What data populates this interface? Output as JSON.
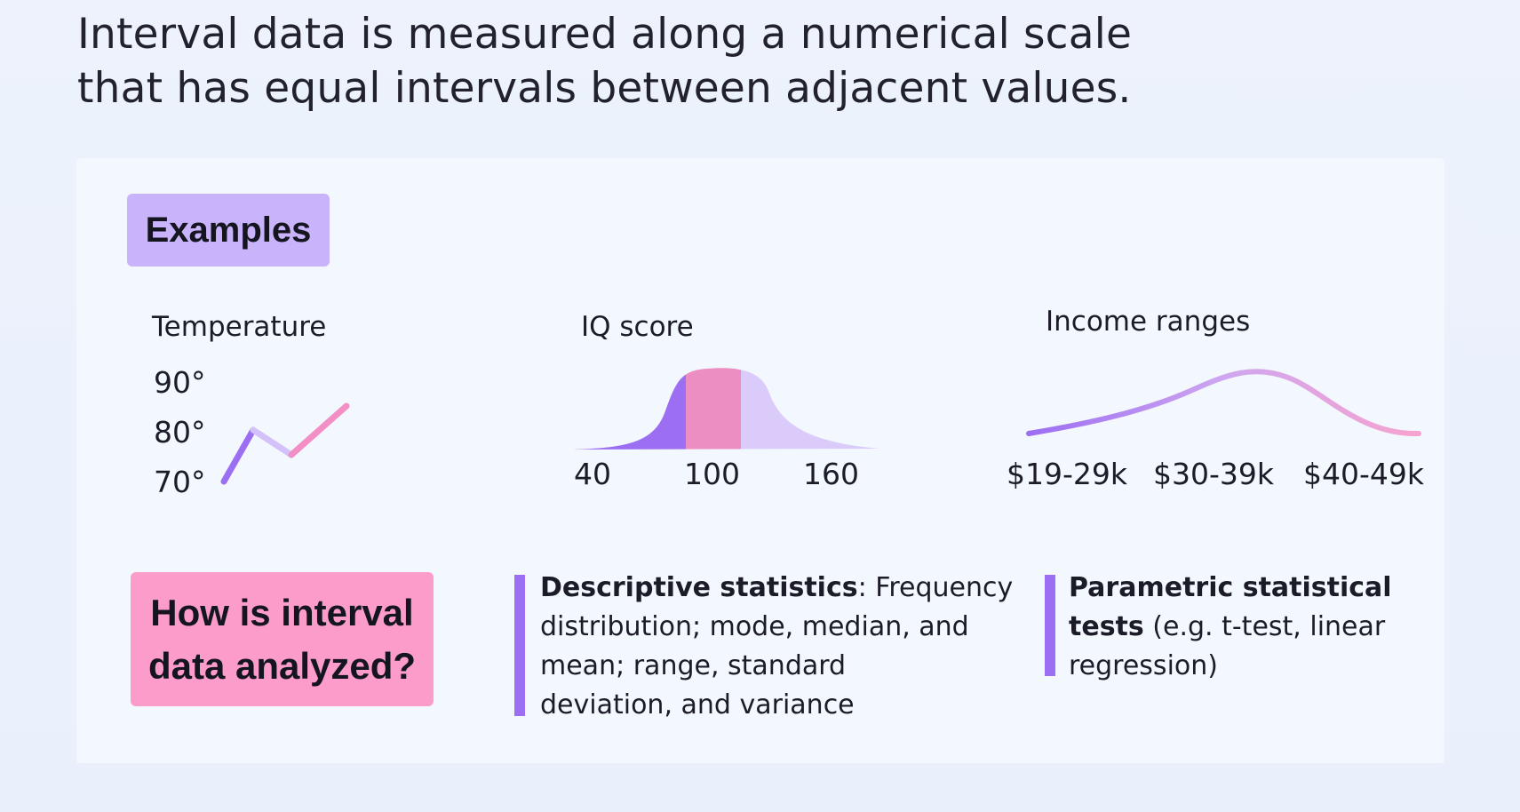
{
  "headline": {
    "line1": "Interval data is measured along a numerical scale",
    "line2": "that has equal intervals between adjacent values."
  },
  "examples_badge": "Examples",
  "temperature": {
    "label": "Temperature",
    "ticks": [
      "90°",
      "80°",
      "70°"
    ]
  },
  "iq": {
    "label": "IQ score",
    "ticks": [
      "40",
      "100",
      "160"
    ]
  },
  "income": {
    "label": "Income ranges",
    "ticks": [
      "$19-29k",
      "$30-39k",
      "$40-49k"
    ]
  },
  "question": {
    "line1": "How is interval",
    "line2": "data analyzed?"
  },
  "descriptive": {
    "bold": "Descriptive statistics",
    "line1_rest": ": Frequency",
    "line2": "distribution; mode, median, and",
    "line3": "mean; range, standard",
    "line4": "deviation, and variance"
  },
  "parametric": {
    "bold1": "Parametric statistical",
    "bold2": "tests",
    "line2_rest": " (e.g. t-test, linear",
    "line3": "regression)"
  },
  "colors": {
    "purple": "#9c6ef2",
    "lavender": "#c9b3fb",
    "light_lavender": "#d9c6fb",
    "pink": "#fb9ccb",
    "mid_pink": "#ec8ec2"
  }
}
